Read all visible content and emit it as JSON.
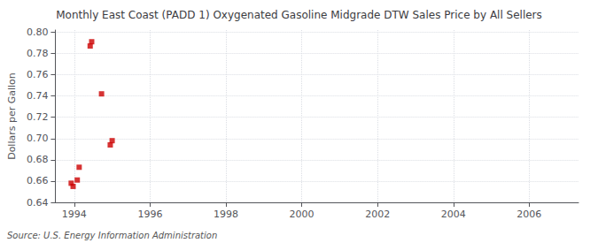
{
  "chart_data": {
    "type": "scatter",
    "title": "Monthly East Coast (PADD 1) Oxygenated Gasoline Midgrade DTW Sales Price by All Sellers",
    "ylabel": "Dollars per Gallon",
    "annotation": "Source: U.S. Energy Information Administration",
    "x": [
      1993.92,
      1993.97,
      1994.08,
      1994.13,
      1994.42,
      1994.46,
      1994.72,
      1994.95,
      1995.0
    ],
    "values": [
      0.658,
      0.655,
      0.661,
      0.673,
      0.787,
      0.791,
      0.742,
      0.694,
      0.698
    ],
    "color": "#cc0000",
    "marker": "square",
    "xlim": [
      1993.5,
      2007.3
    ],
    "xticks": [
      1994,
      1996,
      1998,
      2000,
      2002,
      2004,
      2006
    ],
    "ylim": [
      0.64,
      0.802
    ],
    "yticks": [
      0.64,
      0.66,
      0.68,
      {
        "value": 0.7,
        "label": "0.70"
      },
      0.72,
      0.74,
      0.76,
      0.78,
      {
        "value": 0.8,
        "label": "0.80"
      }
    ],
    "grid": true
  }
}
